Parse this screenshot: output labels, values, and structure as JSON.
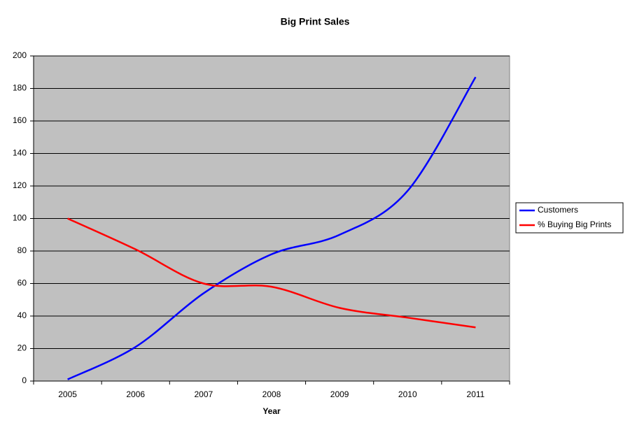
{
  "chart_data": {
    "type": "line",
    "title": "Big Print Sales",
    "x_label": "Year",
    "categories": [
      "2005",
      "2006",
      "2007",
      "2008",
      "2009",
      "2010",
      "2011"
    ],
    "series": [
      {
        "name": "Customers",
        "color": "#0000ff",
        "values": [
          1,
          21,
          54,
          78,
          90,
          117,
          187
        ]
      },
      {
        "name": "% Buying Big Prints",
        "color": "#ff0000",
        "values": [
          100,
          81,
          60,
          58,
          45,
          39,
          33
        ]
      }
    ],
    "ylim": [
      0,
      200
    ],
    "yticks": [
      0,
      20,
      40,
      60,
      80,
      100,
      120,
      140,
      160,
      180,
      200
    ],
    "grid": true,
    "legend": "right",
    "plot_background": "#c0c0c0"
  }
}
